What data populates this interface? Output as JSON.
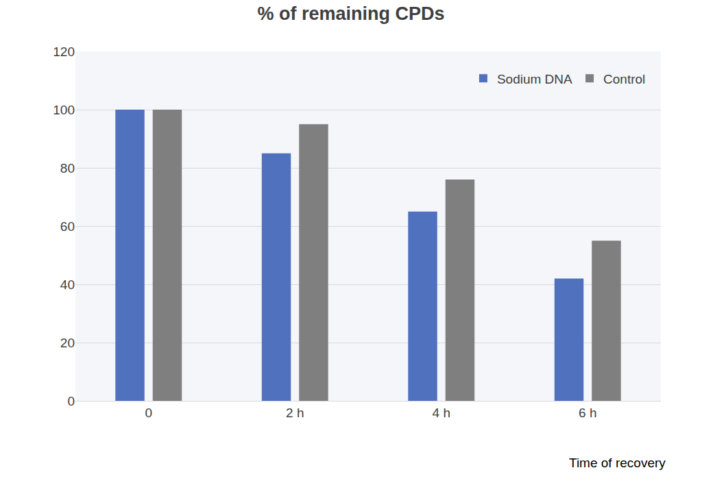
{
  "chart_data": {
    "type": "bar",
    "title": "% of remaining CPDs",
    "x_label": "Time of recovery",
    "categories": [
      "0",
      "2 h",
      "4 h",
      "6 h"
    ],
    "series": [
      {
        "name": "Sodium DNA",
        "color": "#4f71be",
        "values": [
          100,
          85,
          65,
          42
        ]
      },
      {
        "name": "Control",
        "color": "#7f7f7f",
        "values": [
          100,
          95,
          76,
          55
        ]
      }
    ],
    "ylim": [
      0,
      120
    ],
    "yticks": [
      0,
      20,
      40,
      60,
      80,
      100,
      120
    ],
    "grid": true,
    "legend": "top-right"
  }
}
